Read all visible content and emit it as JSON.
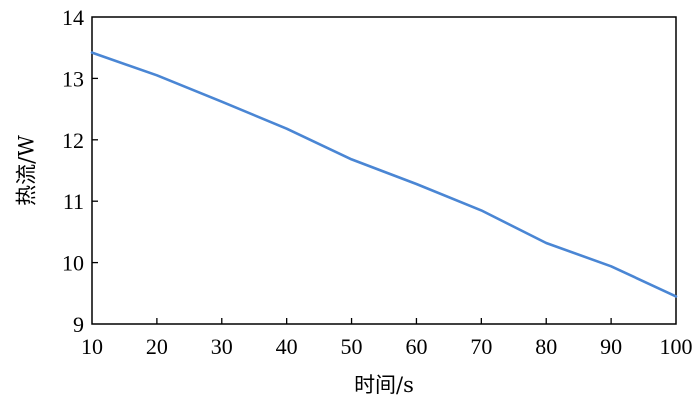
{
  "chart_data": {
    "type": "line",
    "title": "",
    "xlabel": "时间/s",
    "ylabel": "热流/W",
    "xlim": [
      10,
      100
    ],
    "ylim": [
      9,
      14
    ],
    "xticks": [
      "10",
      "20",
      "30",
      "40",
      "50",
      "60",
      "70",
      "80",
      "90",
      "100"
    ],
    "yticks": [
      "9",
      "10",
      "11",
      "12",
      "13",
      "14"
    ],
    "grid": false,
    "legend": "none",
    "series": [
      {
        "color": "#4a86d4",
        "x": [
          10,
          20,
          30,
          40,
          50,
          60,
          70,
          80,
          90,
          100
        ],
        "y": [
          13.42,
          13.05,
          12.62,
          12.18,
          11.68,
          11.28,
          10.85,
          10.32,
          9.94,
          9.45
        ]
      }
    ]
  }
}
